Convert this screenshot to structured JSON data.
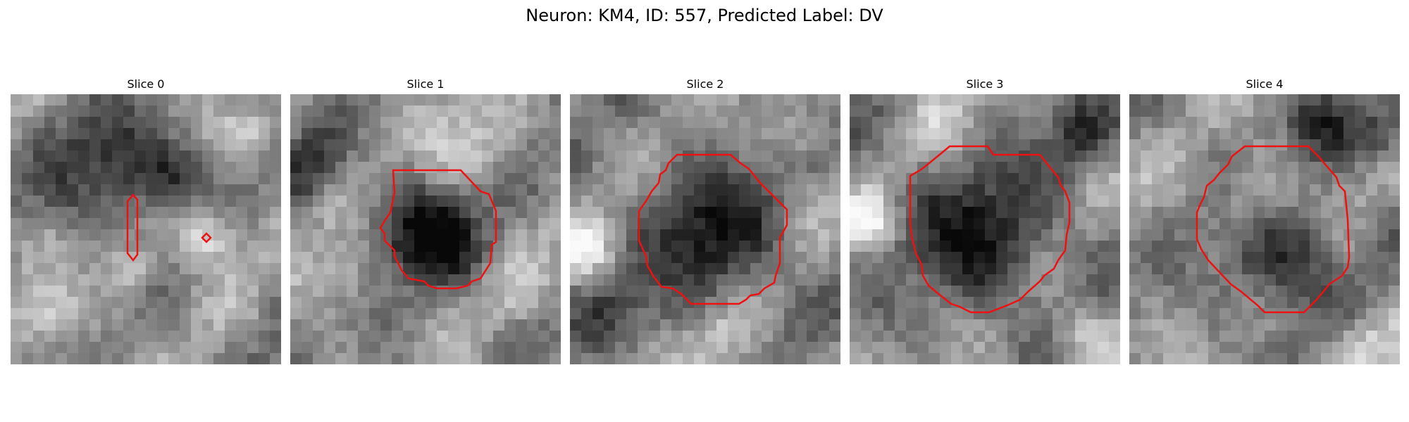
{
  "figure": {
    "title": "Neuron: KM4, ID: 557, Predicted Label: DV",
    "contour_color": "#ee1111"
  },
  "slices": [
    {
      "label": "Slice 0"
    },
    {
      "label": "Slice 1"
    },
    {
      "label": "Slice 2"
    },
    {
      "label": "Slice 3"
    },
    {
      "label": "Slice 4"
    }
  ]
}
